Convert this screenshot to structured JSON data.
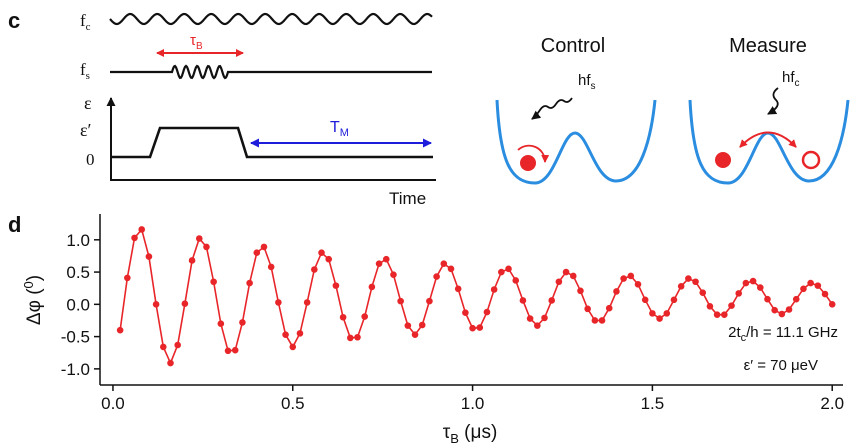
{
  "schematic": {
    "panel_label": "c",
    "fc": {
      "main": "f",
      "sub": "c"
    },
    "fs": {
      "main": "f",
      "sub": "s"
    },
    "tau_b": {
      "main": "τ",
      "sub": "B"
    },
    "eps": "ε",
    "eps_prime": "ε′",
    "zero": "0",
    "t_m": {
      "main": "T",
      "sub": "M"
    },
    "time": "Time",
    "control": "Control",
    "measure": "Measure",
    "hfs": {
      "main": "hf",
      "sub": "s"
    },
    "hfc": {
      "main": "hf",
      "sub": "c"
    }
  },
  "chart_data": {
    "type": "line",
    "panel_label": "d",
    "color": "#e8262a",
    "x": [
      0.02,
      0.04,
      0.06,
      0.08,
      0.1,
      0.12,
      0.14,
      0.16,
      0.18,
      0.2,
      0.22,
      0.24,
      0.26,
      0.28,
      0.3,
      0.32,
      0.34,
      0.36,
      0.38,
      0.4,
      0.42,
      0.44,
      0.46,
      0.48,
      0.5,
      0.52,
      0.54,
      0.56,
      0.58,
      0.6,
      0.62,
      0.64,
      0.66,
      0.68,
      0.7,
      0.72,
      0.74,
      0.76,
      0.78,
      0.8,
      0.82,
      0.84,
      0.86,
      0.88,
      0.9,
      0.92,
      0.94,
      0.96,
      0.98,
      1.0,
      1.02,
      1.04,
      1.06,
      1.08,
      1.1,
      1.12,
      1.14,
      1.16,
      1.18,
      1.2,
      1.22,
      1.24,
      1.26,
      1.28,
      1.3,
      1.32,
      1.34,
      1.36,
      1.38,
      1.4,
      1.42,
      1.44,
      1.46,
      1.48,
      1.5,
      1.52,
      1.54,
      1.56,
      1.58,
      1.6,
      1.62,
      1.64,
      1.66,
      1.68,
      1.7,
      1.72,
      1.74,
      1.76,
      1.78,
      1.8,
      1.82,
      1.84,
      1.86,
      1.88,
      1.9,
      1.92,
      1.94,
      1.96,
      1.98,
      2.0
    ],
    "values": [
      -0.4,
      0.41,
      1.03,
      1.16,
      0.74,
      0.0,
      -0.66,
      -0.91,
      -0.63,
      0.01,
      0.68,
      1.02,
      0.89,
      0.35,
      -0.3,
      -0.72,
      -0.71,
      -0.28,
      0.33,
      0.8,
      0.89,
      0.58,
      0.03,
      -0.47,
      -0.66,
      -0.45,
      0.03,
      0.54,
      0.8,
      0.7,
      0.29,
      -0.2,
      -0.52,
      -0.51,
      -0.19,
      0.27,
      0.63,
      0.7,
      0.46,
      0.05,
      -0.33,
      -0.47,
      -0.32,
      0.05,
      0.43,
      0.63,
      0.55,
      0.24,
      -0.13,
      -0.37,
      -0.36,
      -0.12,
      0.23,
      0.5,
      0.55,
      0.37,
      0.06,
      -0.22,
      -0.33,
      -0.21,
      0.06,
      0.35,
      0.5,
      0.44,
      0.21,
      -0.07,
      -0.25,
      -0.25,
      -0.06,
      0.2,
      0.4,
      0.44,
      0.31,
      0.07,
      -0.14,
      -0.22,
      -0.14,
      0.07,
      0.28,
      0.4,
      0.35,
      0.18,
      -0.03,
      -0.16,
      -0.16,
      -0.02,
      0.17,
      0.33,
      0.36,
      0.26,
      0.08,
      -0.09,
      -0.15,
      -0.08,
      0.08,
      0.24,
      0.33,
      0.29,
      0.16,
      0.0
    ],
    "xlim": [
      -0.036,
      2.03
    ],
    "ylim": [
      -1.25,
      1.4
    ],
    "xticks": [
      {
        "value": 0,
        "label": "0.0"
      },
      0.5,
      {
        "value": 1,
        "label": "1.0"
      },
      1.5,
      {
        "value": 2,
        "label": "2.0"
      }
    ],
    "yticks": [
      {
        "value": -1,
        "label": "-1.0"
      },
      -0.5,
      {
        "value": 0,
        "label": "0.0"
      },
      0.5,
      {
        "value": 1,
        "label": "1.0"
      }
    ],
    "x_label": {
      "main": "τ",
      "sub": "B",
      "rest": " (μs)"
    },
    "y_label": {
      "main": "Δφ (",
      "sup": "0",
      "rest": ")"
    },
    "annotations": [
      {
        "main": "2t",
        "sub": "c",
        "rest": "/h = 11.1 GHz"
      },
      "ε′ = 70 μeV"
    ]
  }
}
